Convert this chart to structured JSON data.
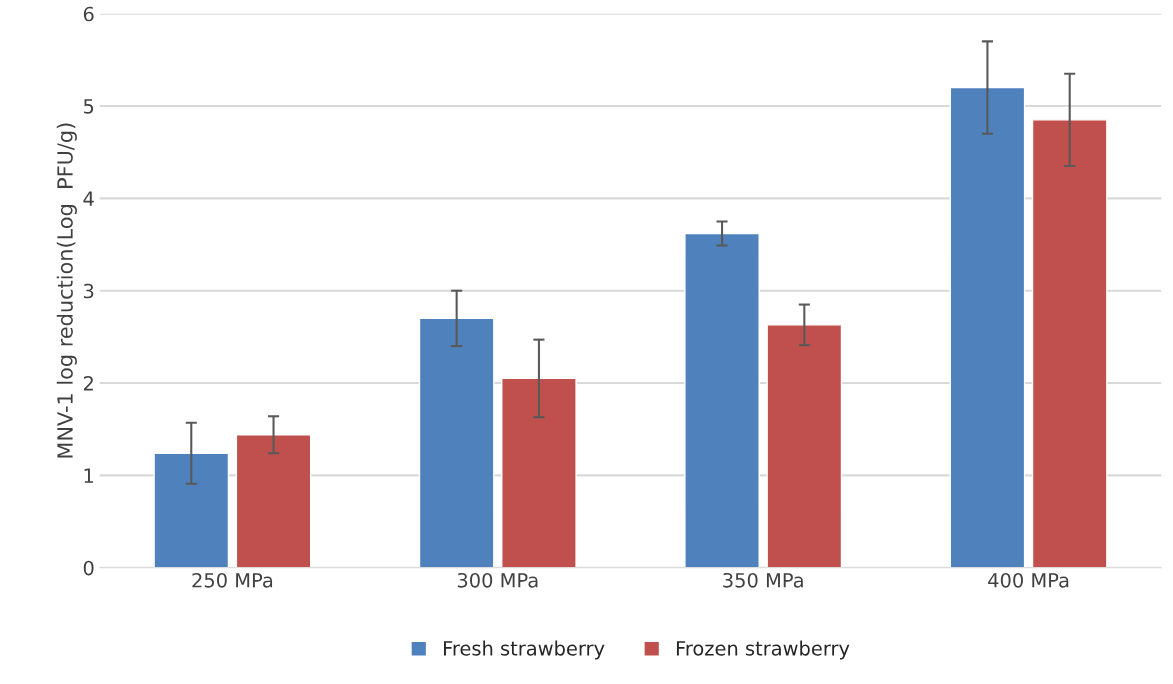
{
  "chart_data": {
    "type": "bar",
    "ylabel": "MNV-1 log reduction(Log  PFU/g)",
    "categories": [
      "250 MPa",
      "300 MPa",
      "350 MPa",
      "400 MPa"
    ],
    "series": [
      {
        "name": "Fresh strawberry",
        "color": "#4f81bd",
        "values": [
          1.24,
          2.7,
          3.62,
          5.2
        ],
        "errors": [
          0.33,
          0.3,
          0.13,
          0.5
        ]
      },
      {
        "name": "Frozen strawberry",
        "color": "#c0504d",
        "values": [
          1.44,
          2.05,
          2.63,
          4.85
        ],
        "errors": [
          0.2,
          0.42,
          0.22,
          0.5
        ]
      }
    ],
    "ylim": [
      0,
      6
    ],
    "yticks": [
      0,
      1,
      2,
      3,
      4,
      5,
      6
    ],
    "grid": "y",
    "legend": "bottom"
  }
}
